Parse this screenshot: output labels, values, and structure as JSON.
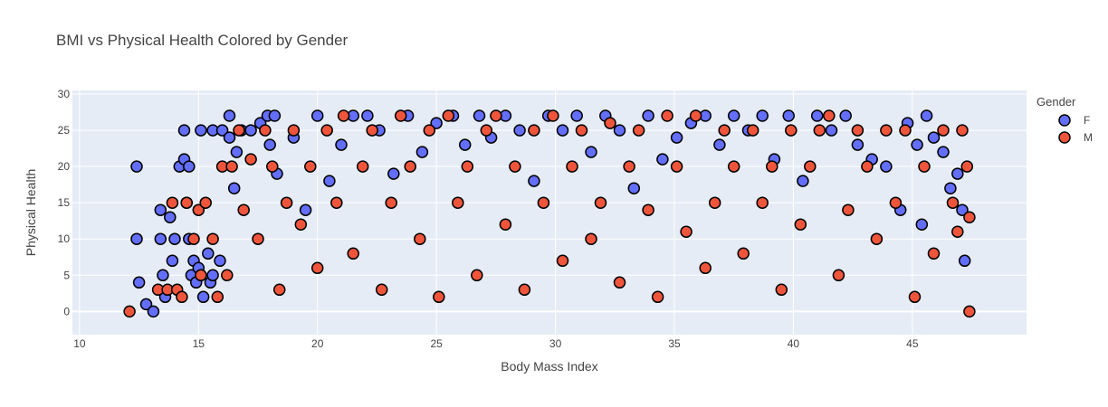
{
  "chart_data": {
    "type": "scatter",
    "title": "BMI vs Physical Health Colored by Gender",
    "xlabel": "Body Mass Index",
    "ylabel": "Physical Health",
    "xlim": [
      9.7,
      49.8
    ],
    "ylim": [
      -3.2,
      30.5
    ],
    "xticks": [
      10,
      15,
      20,
      25,
      30,
      35,
      40,
      45
    ],
    "yticks": [
      0,
      5,
      10,
      15,
      20,
      25,
      30
    ],
    "grid": true,
    "legend": {
      "title": "Gender",
      "placement": "top-right"
    },
    "series": [
      {
        "name": "F",
        "color": "#636efa",
        "points": [
          [
            12.4,
            20
          ],
          [
            12.4,
            10
          ],
          [
            12.5,
            4
          ],
          [
            12.8,
            1
          ],
          [
            13.1,
            0
          ],
          [
            13.4,
            14
          ],
          [
            13.4,
            10
          ],
          [
            13.5,
            5
          ],
          [
            13.6,
            2
          ],
          [
            13.8,
            13
          ],
          [
            13.9,
            7
          ],
          [
            14.0,
            10
          ],
          [
            14.2,
            20
          ],
          [
            14.4,
            25
          ],
          [
            14.4,
            21
          ],
          [
            14.5,
            15
          ],
          [
            14.6,
            10
          ],
          [
            14.6,
            20
          ],
          [
            14.7,
            5
          ],
          [
            14.8,
            7
          ],
          [
            14.9,
            4
          ],
          [
            15.0,
            6
          ],
          [
            15.2,
            2
          ],
          [
            15.1,
            25
          ],
          [
            15.4,
            8
          ],
          [
            15.5,
            4
          ],
          [
            15.6,
            5
          ],
          [
            15.6,
            25
          ],
          [
            15.9,
            7
          ],
          [
            16.0,
            25
          ],
          [
            16.3,
            27
          ],
          [
            16.3,
            24
          ],
          [
            16.5,
            17
          ],
          [
            16.6,
            22
          ],
          [
            16.8,
            25
          ],
          [
            17.2,
            25
          ],
          [
            17.6,
            26
          ],
          [
            17.9,
            27
          ],
          [
            18.0,
            23
          ],
          [
            18.2,
            27
          ],
          [
            18.3,
            19
          ],
          [
            19.0,
            24
          ],
          [
            19.5,
            14
          ],
          [
            20.0,
            27
          ],
          [
            20.5,
            18
          ],
          [
            21.0,
            23
          ],
          [
            21.5,
            27
          ],
          [
            22.1,
            27
          ],
          [
            22.6,
            25
          ],
          [
            23.2,
            19
          ],
          [
            23.8,
            27
          ],
          [
            24.4,
            22
          ],
          [
            25.0,
            26
          ],
          [
            25.7,
            27
          ],
          [
            26.2,
            23
          ],
          [
            26.8,
            27
          ],
          [
            27.3,
            24
          ],
          [
            27.9,
            27
          ],
          [
            28.5,
            25
          ],
          [
            29.1,
            18
          ],
          [
            29.7,
            27
          ],
          [
            30.3,
            25
          ],
          [
            30.9,
            27
          ],
          [
            31.5,
            22
          ],
          [
            32.1,
            27
          ],
          [
            32.7,
            25
          ],
          [
            33.3,
            17
          ],
          [
            33.9,
            27
          ],
          [
            34.5,
            21
          ],
          [
            35.1,
            24
          ],
          [
            35.7,
            26
          ],
          [
            36.3,
            27
          ],
          [
            36.9,
            23
          ],
          [
            37.5,
            27
          ],
          [
            38.1,
            25
          ],
          [
            38.7,
            27
          ],
          [
            39.2,
            21
          ],
          [
            39.8,
            27
          ],
          [
            40.4,
            18
          ],
          [
            41.0,
            27
          ],
          [
            41.6,
            25
          ],
          [
            42.2,
            27
          ],
          [
            42.7,
            23
          ],
          [
            43.3,
            21
          ],
          [
            43.9,
            20
          ],
          [
            44.5,
            14
          ],
          [
            44.8,
            26
          ],
          [
            45.2,
            23
          ],
          [
            45.4,
            12
          ],
          [
            45.6,
            27
          ],
          [
            45.9,
            24
          ],
          [
            46.3,
            22
          ],
          [
            46.6,
            17
          ],
          [
            46.9,
            19
          ],
          [
            47.1,
            14
          ],
          [
            47.2,
            7
          ]
        ]
      },
      {
        "name": "M",
        "color": "#ef553b",
        "points": [
          [
            12.1,
            0
          ],
          [
            13.3,
            3
          ],
          [
            13.7,
            3
          ],
          [
            13.9,
            15
          ],
          [
            14.1,
            3
          ],
          [
            14.3,
            2
          ],
          [
            14.5,
            15
          ],
          [
            14.8,
            10
          ],
          [
            15.0,
            14
          ],
          [
            15.1,
            5
          ],
          [
            15.3,
            15
          ],
          [
            15.6,
            10
          ],
          [
            15.8,
            2
          ],
          [
            16.0,
            20
          ],
          [
            16.2,
            5
          ],
          [
            16.4,
            20
          ],
          [
            16.7,
            25
          ],
          [
            16.9,
            14
          ],
          [
            17.2,
            21
          ],
          [
            17.5,
            10
          ],
          [
            17.8,
            25
          ],
          [
            18.1,
            20
          ],
          [
            18.4,
            3
          ],
          [
            18.7,
            15
          ],
          [
            19.0,
            25
          ],
          [
            19.3,
            12
          ],
          [
            19.7,
            20
          ],
          [
            20.0,
            6
          ],
          [
            20.4,
            25
          ],
          [
            20.8,
            15
          ],
          [
            21.1,
            27
          ],
          [
            21.5,
            8
          ],
          [
            21.9,
            20
          ],
          [
            22.3,
            25
          ],
          [
            22.7,
            3
          ],
          [
            23.1,
            15
          ],
          [
            23.5,
            27
          ],
          [
            23.9,
            20
          ],
          [
            24.3,
            10
          ],
          [
            24.7,
            25
          ],
          [
            25.1,
            2
          ],
          [
            25.5,
            27
          ],
          [
            25.9,
            15
          ],
          [
            26.3,
            20
          ],
          [
            26.7,
            5
          ],
          [
            27.1,
            25
          ],
          [
            27.5,
            27
          ],
          [
            27.9,
            12
          ],
          [
            28.3,
            20
          ],
          [
            28.7,
            3
          ],
          [
            29.1,
            25
          ],
          [
            29.5,
            15
          ],
          [
            29.9,
            27
          ],
          [
            30.3,
            7
          ],
          [
            30.7,
            20
          ],
          [
            31.1,
            25
          ],
          [
            31.5,
            10
          ],
          [
            31.9,
            15
          ],
          [
            32.3,
            26
          ],
          [
            32.7,
            4
          ],
          [
            33.1,
            20
          ],
          [
            33.5,
            25
          ],
          [
            33.9,
            14
          ],
          [
            34.3,
            2
          ],
          [
            34.7,
            27
          ],
          [
            35.1,
            20
          ],
          [
            35.5,
            11
          ],
          [
            35.9,
            27
          ],
          [
            36.3,
            6
          ],
          [
            36.7,
            15
          ],
          [
            37.1,
            25
          ],
          [
            37.5,
            20
          ],
          [
            37.9,
            8
          ],
          [
            38.3,
            25
          ],
          [
            38.7,
            15
          ],
          [
            39.1,
            20
          ],
          [
            39.5,
            3
          ],
          [
            39.9,
            25
          ],
          [
            40.3,
            12
          ],
          [
            40.7,
            20
          ],
          [
            41.1,
            25
          ],
          [
            41.5,
            27
          ],
          [
            41.9,
            5
          ],
          [
            42.3,
            14
          ],
          [
            42.7,
            25
          ],
          [
            43.1,
            20
          ],
          [
            43.5,
            10
          ],
          [
            43.9,
            25
          ],
          [
            44.3,
            15
          ],
          [
            44.7,
            25
          ],
          [
            45.1,
            2
          ],
          [
            45.5,
            20
          ],
          [
            45.9,
            8
          ],
          [
            46.3,
            25
          ],
          [
            46.7,
            15
          ],
          [
            47.1,
            25
          ],
          [
            47.3,
            20
          ],
          [
            47.4,
            13
          ],
          [
            47.4,
            0
          ],
          [
            46.9,
            11
          ]
        ]
      }
    ]
  }
}
